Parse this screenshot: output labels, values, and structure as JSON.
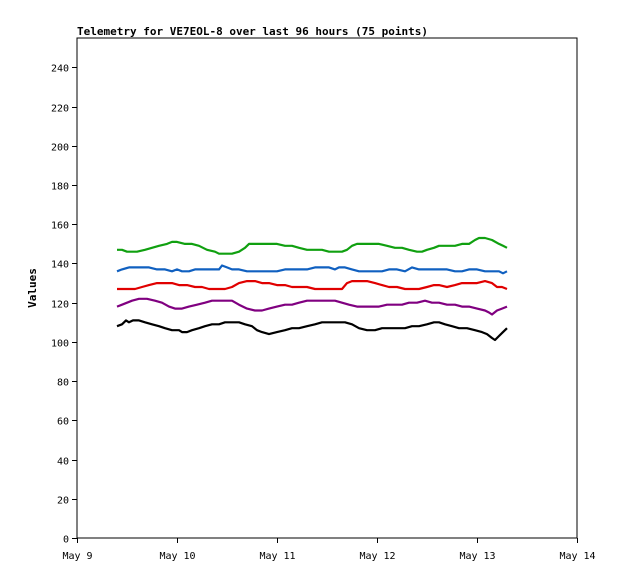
{
  "chart_data": {
    "type": "line",
    "title": "Telemetry for VE7EOL-8 over last 96 hours (75 points)",
    "xlabel": "",
    "ylabel": "Values",
    "x_ticks": [
      "May 9",
      "May 10",
      "May 11",
      "May 12",
      "May 13",
      "May 14"
    ],
    "xlim": [
      0,
      5
    ],
    "ylim": [
      0,
      255
    ],
    "y_ticks": [
      0,
      20,
      40,
      60,
      80,
      100,
      120,
      140,
      160,
      180,
      200,
      220,
      240
    ],
    "grid": false,
    "series": [
      {
        "color": "#000000",
        "points": [
          [
            0.4,
            108
          ],
          [
            0.45,
            109
          ],
          [
            0.49,
            111
          ],
          [
            0.52,
            110
          ],
          [
            0.56,
            111
          ],
          [
            0.62,
            111
          ],
          [
            0.68,
            110
          ],
          [
            0.75,
            109
          ],
          [
            0.82,
            108
          ],
          [
            0.88,
            107
          ],
          [
            0.95,
            106
          ],
          [
            1.02,
            106
          ],
          [
            1.05,
            105
          ],
          [
            1.1,
            105
          ],
          [
            1.15,
            106
          ],
          [
            1.22,
            107
          ],
          [
            1.28,
            108
          ],
          [
            1.35,
            109
          ],
          [
            1.42,
            109
          ],
          [
            1.48,
            110
          ],
          [
            1.55,
            110
          ],
          [
            1.62,
            110
          ],
          [
            1.68,
            109
          ],
          [
            1.75,
            108
          ],
          [
            1.8,
            106
          ],
          [
            1.85,
            105
          ],
          [
            1.92,
            104
          ],
          [
            2.0,
            105
          ],
          [
            2.08,
            106
          ],
          [
            2.15,
            107
          ],
          [
            2.22,
            107
          ],
          [
            2.3,
            108
          ],
          [
            2.38,
            109
          ],
          [
            2.45,
            110
          ],
          [
            2.5,
            110
          ],
          [
            2.55,
            110
          ],
          [
            2.62,
            110
          ],
          [
            2.68,
            110
          ],
          [
            2.75,
            109
          ],
          [
            2.82,
            107
          ],
          [
            2.9,
            106
          ],
          [
            2.98,
            106
          ],
          [
            3.05,
            107
          ],
          [
            3.12,
            107
          ],
          [
            3.2,
            107
          ],
          [
            3.28,
            107
          ],
          [
            3.35,
            108
          ],
          [
            3.42,
            108
          ],
          [
            3.5,
            109
          ],
          [
            3.57,
            110
          ],
          [
            3.62,
            110
          ],
          [
            3.68,
            109
          ],
          [
            3.75,
            108
          ],
          [
            3.82,
            107
          ],
          [
            3.9,
            107
          ],
          [
            3.98,
            106
          ],
          [
            4.05,
            105
          ],
          [
            4.1,
            104
          ],
          [
            4.15,
            102
          ],
          [
            4.18,
            101
          ],
          [
            4.22,
            103
          ],
          [
            4.26,
            105
          ],
          [
            4.3,
            107
          ]
        ]
      },
      {
        "color": "#800080",
        "points": [
          [
            0.4,
            118
          ],
          [
            0.45,
            119
          ],
          [
            0.5,
            120
          ],
          [
            0.55,
            121
          ],
          [
            0.62,
            122
          ],
          [
            0.7,
            122
          ],
          [
            0.78,
            121
          ],
          [
            0.85,
            120
          ],
          [
            0.92,
            118
          ],
          [
            0.98,
            117
          ],
          [
            1.05,
            117
          ],
          [
            1.12,
            118
          ],
          [
            1.2,
            119
          ],
          [
            1.28,
            120
          ],
          [
            1.35,
            121
          ],
          [
            1.42,
            121
          ],
          [
            1.5,
            121
          ],
          [
            1.55,
            121
          ],
          [
            1.62,
            119
          ],
          [
            1.7,
            117
          ],
          [
            1.78,
            116
          ],
          [
            1.85,
            116
          ],
          [
            1.92,
            117
          ],
          [
            2.0,
            118
          ],
          [
            2.08,
            119
          ],
          [
            2.15,
            119
          ],
          [
            2.22,
            120
          ],
          [
            2.3,
            121
          ],
          [
            2.38,
            121
          ],
          [
            2.45,
            121
          ],
          [
            2.52,
            121
          ],
          [
            2.58,
            121
          ],
          [
            2.65,
            120
          ],
          [
            2.72,
            119
          ],
          [
            2.8,
            118
          ],
          [
            2.88,
            118
          ],
          [
            2.95,
            118
          ],
          [
            3.02,
            118
          ],
          [
            3.1,
            119
          ],
          [
            3.18,
            119
          ],
          [
            3.25,
            119
          ],
          [
            3.32,
            120
          ],
          [
            3.4,
            120
          ],
          [
            3.48,
            121
          ],
          [
            3.55,
            120
          ],
          [
            3.62,
            120
          ],
          [
            3.7,
            119
          ],
          [
            3.78,
            119
          ],
          [
            3.85,
            118
          ],
          [
            3.92,
            118
          ],
          [
            4.0,
            117
          ],
          [
            4.08,
            116
          ],
          [
            4.12,
            115
          ],
          [
            4.15,
            114
          ],
          [
            4.2,
            116
          ],
          [
            4.25,
            117
          ],
          [
            4.3,
            118
          ]
        ]
      },
      {
        "color": "#e00000",
        "points": [
          [
            0.4,
            127
          ],
          [
            0.45,
            127
          ],
          [
            0.5,
            127
          ],
          [
            0.58,
            127
          ],
          [
            0.65,
            128
          ],
          [
            0.72,
            129
          ],
          [
            0.8,
            130
          ],
          [
            0.88,
            130
          ],
          [
            0.95,
            130
          ],
          [
            1.02,
            129
          ],
          [
            1.1,
            129
          ],
          [
            1.18,
            128
          ],
          [
            1.25,
            128
          ],
          [
            1.32,
            127
          ],
          [
            1.4,
            127
          ],
          [
            1.48,
            127
          ],
          [
            1.55,
            128
          ],
          [
            1.62,
            130
          ],
          [
            1.7,
            131
          ],
          [
            1.78,
            131
          ],
          [
            1.85,
            130
          ],
          [
            1.92,
            130
          ],
          [
            2.0,
            129
          ],
          [
            2.08,
            129
          ],
          [
            2.15,
            128
          ],
          [
            2.22,
            128
          ],
          [
            2.3,
            128
          ],
          [
            2.38,
            127
          ],
          [
            2.45,
            127
          ],
          [
            2.52,
            127
          ],
          [
            2.58,
            127
          ],
          [
            2.65,
            127
          ],
          [
            2.7,
            130
          ],
          [
            2.75,
            131
          ],
          [
            2.82,
            131
          ],
          [
            2.9,
            131
          ],
          [
            2.98,
            130
          ],
          [
            3.05,
            129
          ],
          [
            3.12,
            128
          ],
          [
            3.2,
            128
          ],
          [
            3.28,
            127
          ],
          [
            3.35,
            127
          ],
          [
            3.42,
            127
          ],
          [
            3.5,
            128
          ],
          [
            3.57,
            129
          ],
          [
            3.62,
            129
          ],
          [
            3.7,
            128
          ],
          [
            3.78,
            129
          ],
          [
            3.85,
            130
          ],
          [
            3.92,
            130
          ],
          [
            4.0,
            130
          ],
          [
            4.08,
            131
          ],
          [
            4.15,
            130
          ],
          [
            4.2,
            128
          ],
          [
            4.25,
            128
          ],
          [
            4.3,
            127
          ]
        ]
      },
      {
        "color": "#1060c0",
        "points": [
          [
            0.4,
            136
          ],
          [
            0.45,
            137
          ],
          [
            0.52,
            138
          ],
          [
            0.58,
            138
          ],
          [
            0.65,
            138
          ],
          [
            0.72,
            138
          ],
          [
            0.8,
            137
          ],
          [
            0.88,
            137
          ],
          [
            0.95,
            136
          ],
          [
            1.0,
            137
          ],
          [
            1.05,
            136
          ],
          [
            1.12,
            136
          ],
          [
            1.18,
            137
          ],
          [
            1.25,
            137
          ],
          [
            1.32,
            137
          ],
          [
            1.38,
            137
          ],
          [
            1.42,
            137
          ],
          [
            1.45,
            139
          ],
          [
            1.5,
            138
          ],
          [
            1.55,
            137
          ],
          [
            1.62,
            137
          ],
          [
            1.7,
            136
          ],
          [
            1.78,
            136
          ],
          [
            1.85,
            136
          ],
          [
            1.92,
            136
          ],
          [
            2.0,
            136
          ],
          [
            2.08,
            137
          ],
          [
            2.15,
            137
          ],
          [
            2.22,
            137
          ],
          [
            2.3,
            137
          ],
          [
            2.38,
            138
          ],
          [
            2.45,
            138
          ],
          [
            2.52,
            138
          ],
          [
            2.58,
            137
          ],
          [
            2.62,
            138
          ],
          [
            2.68,
            138
          ],
          [
            2.75,
            137
          ],
          [
            2.82,
            136
          ],
          [
            2.9,
            136
          ],
          [
            2.98,
            136
          ],
          [
            3.05,
            136
          ],
          [
            3.12,
            137
          ],
          [
            3.2,
            137
          ],
          [
            3.28,
            136
          ],
          [
            3.35,
            138
          ],
          [
            3.42,
            137
          ],
          [
            3.5,
            137
          ],
          [
            3.55,
            137
          ],
          [
            3.62,
            137
          ],
          [
            3.7,
            137
          ],
          [
            3.78,
            136
          ],
          [
            3.85,
            136
          ],
          [
            3.92,
            137
          ],
          [
            4.0,
            137
          ],
          [
            4.08,
            136
          ],
          [
            4.15,
            136
          ],
          [
            4.22,
            136
          ],
          [
            4.26,
            135
          ],
          [
            4.3,
            136
          ]
        ]
      },
      {
        "color": "#10a010",
        "points": [
          [
            0.4,
            147
          ],
          [
            0.45,
            147
          ],
          [
            0.5,
            146
          ],
          [
            0.55,
            146
          ],
          [
            0.6,
            146
          ],
          [
            0.68,
            147
          ],
          [
            0.75,
            148
          ],
          [
            0.82,
            149
          ],
          [
            0.9,
            150
          ],
          [
            0.95,
            151
          ],
          [
            1.0,
            151
          ],
          [
            1.08,
            150
          ],
          [
            1.15,
            150
          ],
          [
            1.22,
            149
          ],
          [
            1.3,
            147
          ],
          [
            1.38,
            146
          ],
          [
            1.42,
            145
          ],
          [
            1.48,
            145
          ],
          [
            1.55,
            145
          ],
          [
            1.62,
            146
          ],
          [
            1.68,
            148
          ],
          [
            1.72,
            150
          ],
          [
            1.78,
            150
          ],
          [
            1.85,
            150
          ],
          [
            1.92,
            150
          ],
          [
            2.0,
            150
          ],
          [
            2.08,
            149
          ],
          [
            2.15,
            149
          ],
          [
            2.22,
            148
          ],
          [
            2.3,
            147
          ],
          [
            2.38,
            147
          ],
          [
            2.45,
            147
          ],
          [
            2.52,
            146
          ],
          [
            2.58,
            146
          ],
          [
            2.65,
            146
          ],
          [
            2.7,
            147
          ],
          [
            2.75,
            149
          ],
          [
            2.8,
            150
          ],
          [
            2.88,
            150
          ],
          [
            2.95,
            150
          ],
          [
            3.02,
            150
          ],
          [
            3.1,
            149
          ],
          [
            3.18,
            148
          ],
          [
            3.25,
            148
          ],
          [
            3.32,
            147
          ],
          [
            3.4,
            146
          ],
          [
            3.45,
            146
          ],
          [
            3.5,
            147
          ],
          [
            3.57,
            148
          ],
          [
            3.62,
            149
          ],
          [
            3.7,
            149
          ],
          [
            3.78,
            149
          ],
          [
            3.85,
            150
          ],
          [
            3.92,
            150
          ],
          [
            3.98,
            152
          ],
          [
            4.02,
            153
          ],
          [
            4.08,
            153
          ],
          [
            4.15,
            152
          ],
          [
            4.22,
            150
          ],
          [
            4.26,
            149
          ],
          [
            4.3,
            148
          ]
        ]
      }
    ]
  }
}
